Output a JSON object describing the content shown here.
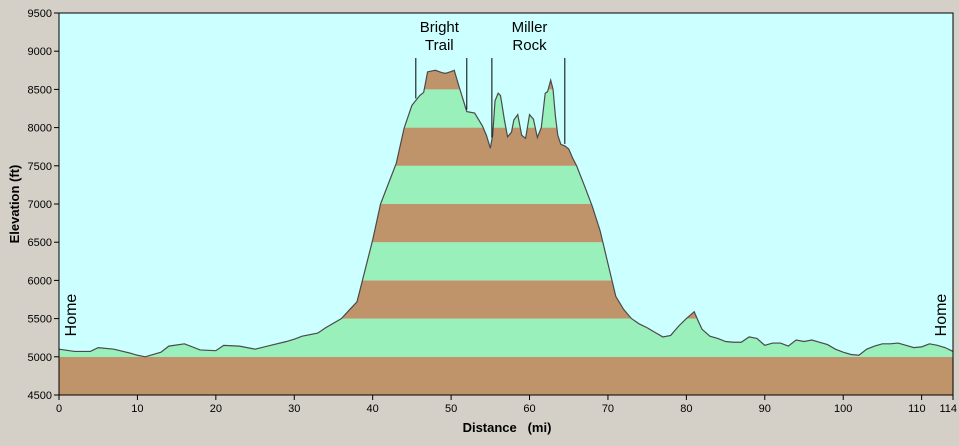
{
  "chart_data": {
    "type": "area",
    "xlabel": "Distance   (mi)",
    "ylabel": "Elevation (ft)",
    "xlim": [
      0,
      114
    ],
    "ylim": [
      4500,
      9500
    ],
    "xticks": [
      0,
      10,
      20,
      30,
      40,
      50,
      60,
      70,
      80,
      90,
      100,
      110,
      114
    ],
    "yticks": [
      4500,
      5000,
      5500,
      6000,
      6500,
      7000,
      7500,
      8000,
      8500,
      9000,
      9500
    ],
    "band_interval_ft": 500,
    "colors": {
      "background": "#ccffff",
      "band_light": "#99f0bb",
      "band_dark": "#bf946b",
      "outline": "#4a4a4a",
      "frame": "#d4d0c8"
    },
    "annotations": [
      {
        "label": "Home",
        "x": 1.5,
        "orientation": "vertical"
      },
      {
        "label": "Home",
        "x": 112.5,
        "orientation": "vertical"
      },
      {
        "label": "Bright Trail",
        "lines": [
          "Bright",
          "Trail"
        ],
        "x": 48.5,
        "range": [
          45.5,
          52
        ]
      },
      {
        "label": "Miller Rock",
        "lines": [
          "Miller",
          "Rock"
        ],
        "x": 60,
        "range": [
          55.2,
          64.5
        ]
      }
    ],
    "x": [
      0,
      2,
      4,
      5,
      7,
      9,
      10,
      11,
      13,
      14,
      16,
      18,
      20,
      21,
      23,
      25,
      27,
      29,
      30,
      31,
      33,
      34,
      36,
      37,
      38,
      40,
      41,
      43,
      44,
      45,
      46,
      46.5,
      47,
      48,
      48.8,
      49.3,
      49.9,
      50.4,
      51,
      52,
      53,
      54,
      54.5,
      55,
      55.3,
      55.6,
      56,
      56.3,
      56.8,
      57.2,
      57.7,
      58,
      58.5,
      59,
      59.5,
      60,
      60.5,
      61,
      61.5,
      62,
      62.3,
      62.7,
      63,
      63.3,
      63.6,
      64,
      64.5,
      65,
      65.5,
      66,
      67,
      68,
      69,
      70,
      71,
      72,
      73,
      74,
      75,
      76,
      77,
      78,
      79,
      80,
      81,
      81.5,
      82,
      83,
      84,
      85,
      86,
      87,
      88,
      89,
      90,
      91,
      92,
      93,
      94,
      95,
      96,
      97,
      98,
      99,
      100,
      101,
      102,
      103,
      104,
      105,
      106,
      107,
      108,
      109,
      110,
      111,
      112,
      113,
      114
    ],
    "y": [
      5100,
      5070,
      5070,
      5120,
      5100,
      5050,
      5020,
      5000,
      5060,
      5140,
      5170,
      5090,
      5080,
      5150,
      5140,
      5100,
      5150,
      5200,
      5230,
      5270,
      5310,
      5380,
      5500,
      5610,
      5720,
      6530,
      7000,
      7530,
      7990,
      8290,
      8420,
      8460,
      8730,
      8750,
      8720,
      8710,
      8730,
      8750,
      8540,
      8210,
      8190,
      8020,
      7900,
      7730,
      7900,
      8350,
      8450,
      8420,
      8100,
      7880,
      7940,
      8100,
      8170,
      7900,
      7860,
      8170,
      8110,
      7870,
      8000,
      8450,
      8470,
      8620,
      8500,
      8150,
      7900,
      7780,
      7760,
      7720,
      7600,
      7500,
      7240,
      6970,
      6650,
      6220,
      5790,
      5620,
      5500,
      5430,
      5380,
      5320,
      5260,
      5280,
      5400,
      5500,
      5590,
      5470,
      5360,
      5270,
      5240,
      5200,
      5190,
      5190,
      5260,
      5240,
      5150,
      5180,
      5180,
      5140,
      5220,
      5200,
      5220,
      5190,
      5160,
      5100,
      5060,
      5030,
      5020,
      5100,
      5140,
      5170,
      5170,
      5180,
      5150,
      5120,
      5130,
      5170,
      5150,
      5120,
      5070
    ]
  }
}
